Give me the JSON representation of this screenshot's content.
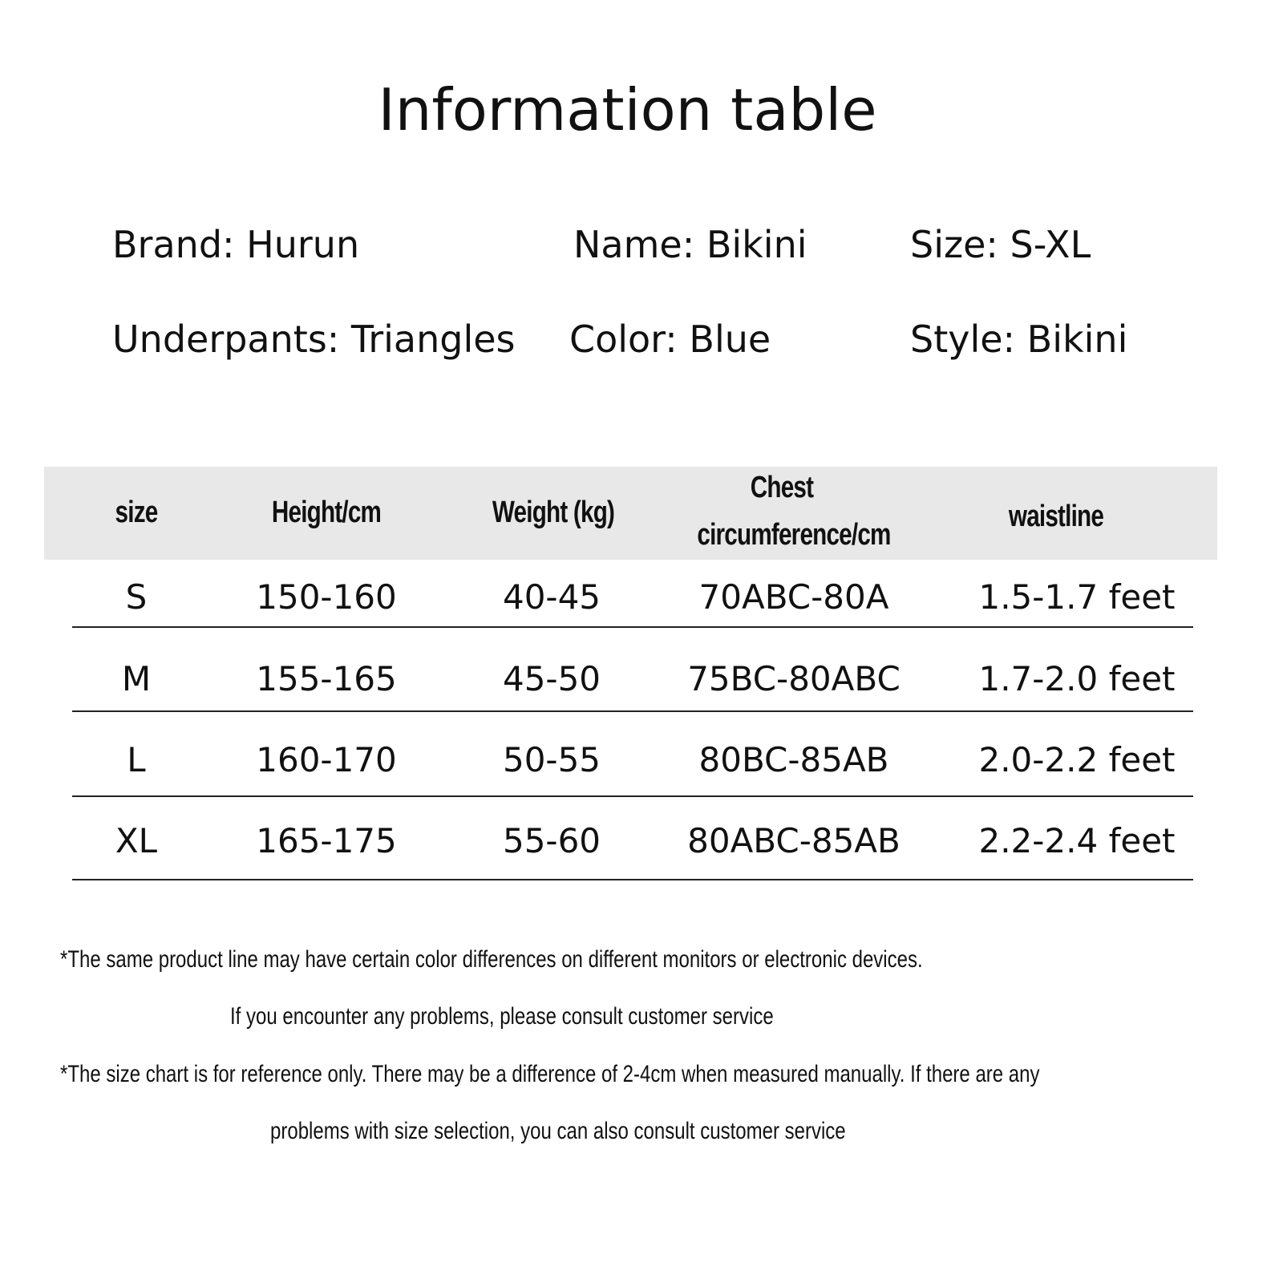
{
  "title": "Information table",
  "info": [
    {
      "label": "Brand: Hurun"
    },
    {
      "label": "Name: Bikini"
    },
    {
      "label": "Size: S-XL"
    },
    {
      "label": "Underpants: Triangles"
    },
    {
      "label": "Color: Blue"
    },
    {
      "label": "Style: Bikini"
    }
  ],
  "table": {
    "header_bg": "#e8e8e8",
    "headers": [
      "size",
      "Height/cm",
      "Weight (kg)",
      "Chest",
      "circumference/cm",
      "waistline"
    ],
    "rows": [
      [
        "S",
        "150-160",
        "40-45",
        "70ABC-80A",
        "1.5-1.7 feet"
      ],
      [
        "M",
        "155-165",
        "45-50",
        "75BC-80ABC",
        "1.7-2.0 feet"
      ],
      [
        "L",
        "160-170",
        "50-55",
        "80BC-85AB",
        "2.0-2.2 feet"
      ],
      [
        "XL",
        "165-175",
        "55-60",
        "80ABC-85AB",
        "2.2-2.4 feet"
      ]
    ]
  },
  "notes": [
    "*The same product line may have certain color differences on different monitors or electronic devices.",
    "If you encounter any problems, please consult customer service",
    "*The size chart is for reference only. There may be a difference of 2-4cm when measured manually. If there are any",
    "problems with size selection, you can also consult customer service"
  ]
}
